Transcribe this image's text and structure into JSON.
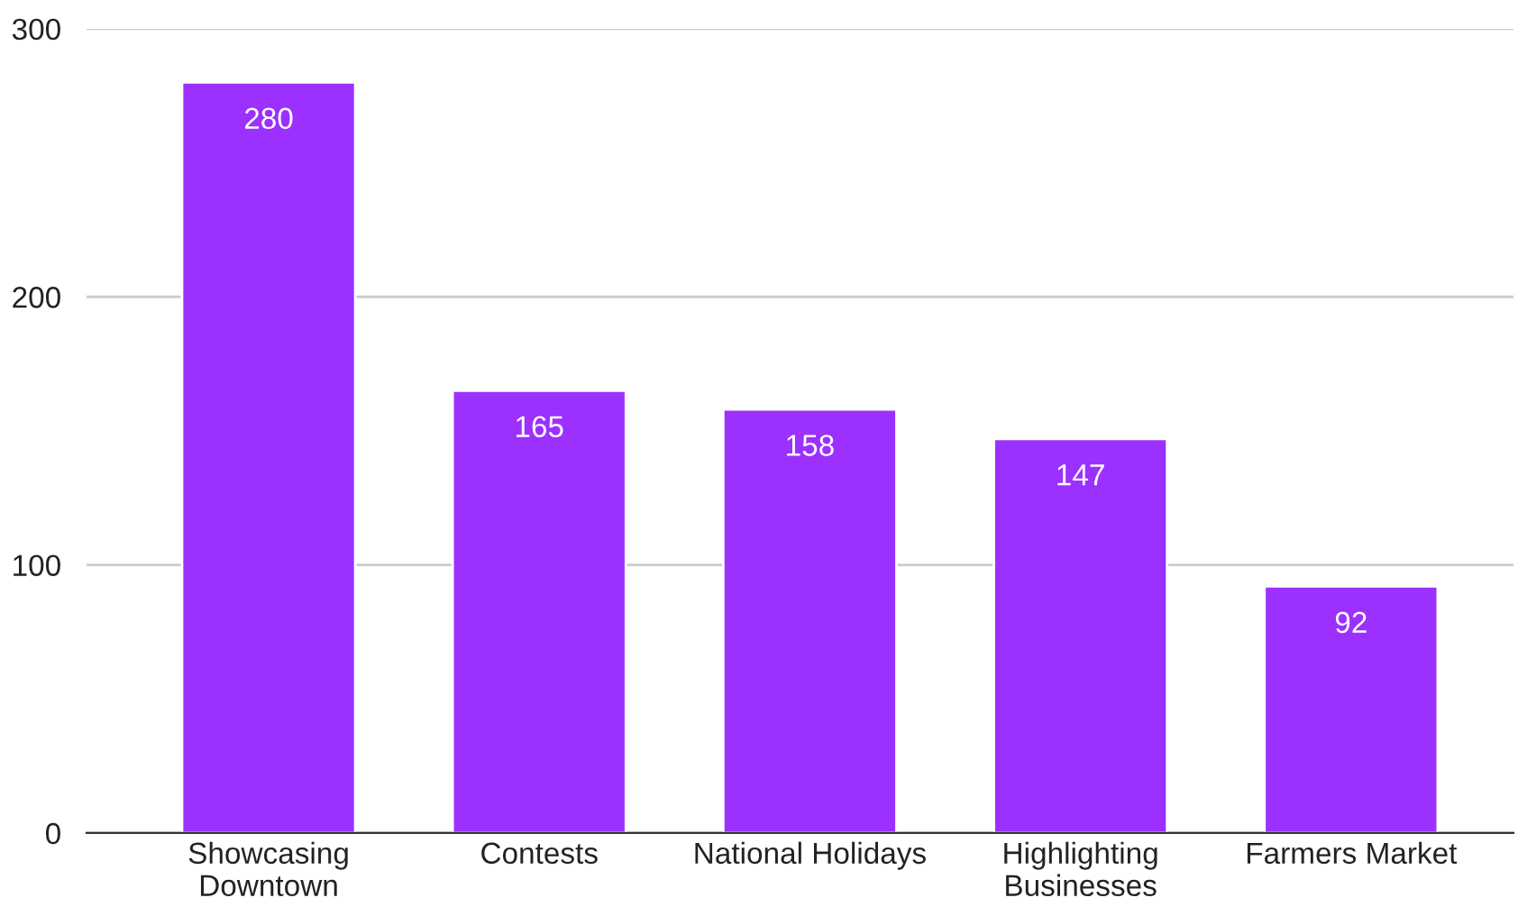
{
  "chart_data": {
    "type": "bar",
    "categories": [
      "Showcasing\nDowntown",
      "Contests",
      "National Holidays",
      "Highlighting\nBusinesses",
      "Farmers Market"
    ],
    "values": [
      280,
      165,
      158,
      147,
      92
    ],
    "color": "#9b30ff",
    "ylim": [
      0,
      300
    ],
    "yticks": [
      0,
      100,
      200,
      300
    ],
    "grid": "y",
    "data_labels": true
  }
}
